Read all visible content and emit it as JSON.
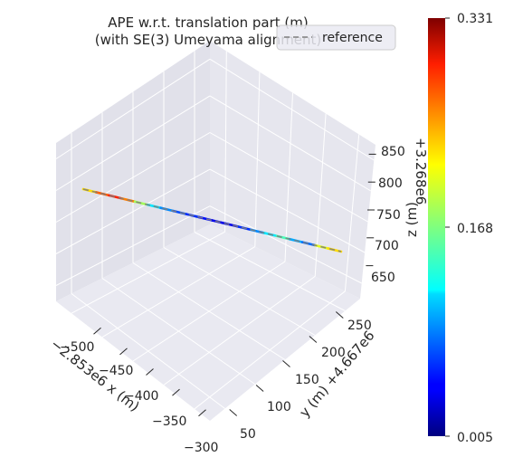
{
  "chart_data": {
    "type": "line",
    "projection": "3d",
    "title_line1": "APE w.r.t. translation part (m)",
    "title_line2": "(with SE(3) Umeyama alignment)",
    "xlabel": "x (m)",
    "ylabel": "y (m)",
    "zlabel": "z (m)",
    "x_offset_label": "−2.853e6",
    "y_offset_label": "+4.667e6",
    "z_offset_label": "+3.268e6",
    "x_ticks": [
      "−500",
      "−450",
      "−400",
      "−350",
      "−300"
    ],
    "y_ticks": [
      "50",
      "100",
      "150",
      "200",
      "250"
    ],
    "z_ticks": [
      "650",
      "700",
      "750",
      "800",
      "850"
    ],
    "legend": {
      "placement": "top-right",
      "entries": [
        {
          "name": "reference",
          "style": "dashed",
          "color": "#7f7f7f"
        }
      ]
    },
    "colorbar": {
      "min_label": "0.005",
      "mid_label": "0.168",
      "max_label": "0.331",
      "min": 0.005,
      "max": 0.331,
      "colormap": "jet"
    },
    "trajectory_error_profile": [
      0.22,
      0.26,
      0.28,
      0.25,
      0.18,
      0.12,
      0.09,
      0.07,
      0.06,
      0.05,
      0.04,
      0.04,
      0.06,
      0.09,
      0.12,
      0.15,
      0.1,
      0.08,
      0.2,
      0.22
    ]
  },
  "colors": {
    "pane_background": "#eaeaf2",
    "grid": "#ffffff",
    "reference": "#7f7f7f"
  }
}
